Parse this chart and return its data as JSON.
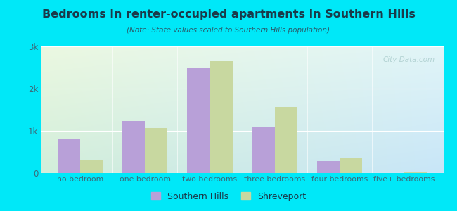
{
  "title": "Bedrooms in renter-occupied apartments in Southern Hills",
  "subtitle": "(Note: State values scaled to Southern Hills population)",
  "categories": [
    "no bedroom",
    "one bedroom",
    "two bedrooms",
    "three bedrooms",
    "four bedrooms",
    "five+ bedrooms"
  ],
  "southern_hills": [
    800,
    1230,
    2480,
    1100,
    280,
    0
  ],
  "shreveport": [
    320,
    1060,
    2650,
    1560,
    350,
    30
  ],
  "bar_color_sh": "#b8a0d8",
  "bar_color_sp": "#c8d8a0",
  "bg_outer": "#00e8f8",
  "title_color": "#1a3a4a",
  "subtitle_color": "#2a5a6a",
  "tick_color": "#3a6a7a",
  "ylim": [
    0,
    3000
  ],
  "yticks": [
    0,
    1000,
    2000,
    3000
  ],
  "ytick_labels": [
    "0",
    "1k",
    "2k",
    "3k"
  ],
  "legend_sh": "Southern Hills",
  "legend_sp": "Shreveport",
  "bar_width": 0.35,
  "watermark": "City-Data.com",
  "watermark_color": "#aacccc"
}
